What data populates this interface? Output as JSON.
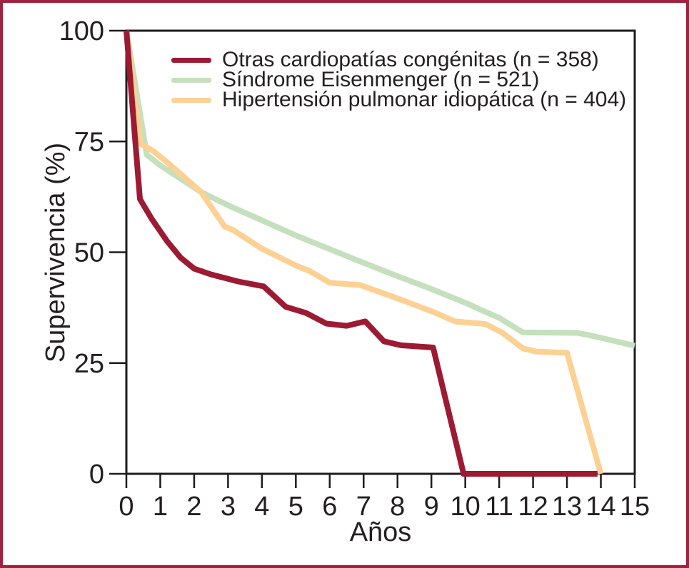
{
  "figure": {
    "background_color": "#ffffff",
    "border_color": "#9f2241",
    "text_color": "#231f20",
    "axis_color": "#1c1c1c"
  },
  "chart_data": {
    "type": "line",
    "title": "",
    "xlabel": "Años",
    "ylabel": "Supervivencia (%)",
    "xlim": [
      0,
      15
    ],
    "ylim": [
      0,
      100
    ],
    "x_ticks": [
      0,
      1,
      2,
      3,
      4,
      5,
      6,
      7,
      8,
      9,
      10,
      11,
      12,
      13,
      14,
      15
    ],
    "y_ticks": [
      0,
      25,
      50,
      75,
      100
    ],
    "grid": false,
    "legend_position": "top-left-inside",
    "series": [
      {
        "id": "otras-cardiopatias-congenitas",
        "name": "Otras cardiopatías congénitas",
        "n": 358,
        "legend_label": "Otras cardiopatías congénitas (n = 358)",
        "color": "#9c1b33",
        "points": [
          [
            0,
            100
          ],
          [
            0.4,
            62
          ],
          [
            0.75,
            57.5
          ],
          [
            1.2,
            52.5
          ],
          [
            1.6,
            48.8
          ],
          [
            2,
            46.3
          ],
          [
            2.5,
            45
          ],
          [
            3.3,
            43.4
          ],
          [
            4.05,
            42.3
          ],
          [
            4.7,
            37.7
          ],
          [
            5.3,
            36.3
          ],
          [
            5.9,
            33.9
          ],
          [
            6.5,
            33.4
          ],
          [
            7.05,
            34.4
          ],
          [
            7.6,
            29.9
          ],
          [
            8.1,
            29
          ],
          [
            9.05,
            28.5
          ],
          [
            9.95,
            0
          ],
          [
            13.9,
            0
          ]
        ]
      },
      {
        "id": "sindrome-eisenmenger",
        "name": "Síndrome Eisenmenger",
        "n": 521,
        "legend_label": "Síndrome Eisenmenger (n = 521)",
        "color": "#c4e0bc",
        "points": [
          [
            0,
            100
          ],
          [
            0.6,
            72
          ],
          [
            1,
            69.6
          ],
          [
            1.6,
            66.6
          ],
          [
            2.2,
            63.6
          ],
          [
            3,
            60.6
          ],
          [
            4,
            57.2
          ],
          [
            5,
            53.8
          ],
          [
            6,
            50.7
          ],
          [
            7,
            47.6
          ],
          [
            8,
            44.6
          ],
          [
            9,
            41.7
          ],
          [
            10,
            38.6
          ],
          [
            10.4,
            37.2
          ],
          [
            11,
            35.2
          ],
          [
            11.7,
            31.9
          ],
          [
            13.3,
            31.8
          ],
          [
            13.7,
            31.2
          ],
          [
            15,
            28.9
          ]
        ]
      },
      {
        "id": "hipertension-pulmonar-idiopatica",
        "name": "Hipertensión pulmonar idiopática",
        "n": 404,
        "legend_label": "Hipertensión pulmonar idiopática (n = 404)",
        "color": "#fcd193",
        "points": [
          [
            0,
            100
          ],
          [
            0.42,
            74.5
          ],
          [
            0.8,
            72.8
          ],
          [
            1.2,
            70.3
          ],
          [
            1.7,
            67
          ],
          [
            2.2,
            63.6
          ],
          [
            2.9,
            55.8
          ],
          [
            3.15,
            55
          ],
          [
            4,
            50.8
          ],
          [
            5,
            47
          ],
          [
            5.4,
            45.8
          ],
          [
            6,
            43.1
          ],
          [
            6.9,
            42.6
          ],
          [
            8,
            39.6
          ],
          [
            9,
            36.7
          ],
          [
            9.7,
            34.4
          ],
          [
            10.6,
            33.8
          ],
          [
            11.1,
            31.8
          ],
          [
            11.7,
            28.3
          ],
          [
            12.1,
            27.6
          ],
          [
            13,
            27.3
          ],
          [
            14,
            0
          ]
        ]
      }
    ],
    "draw_order": [
      1,
      2,
      0
    ]
  }
}
